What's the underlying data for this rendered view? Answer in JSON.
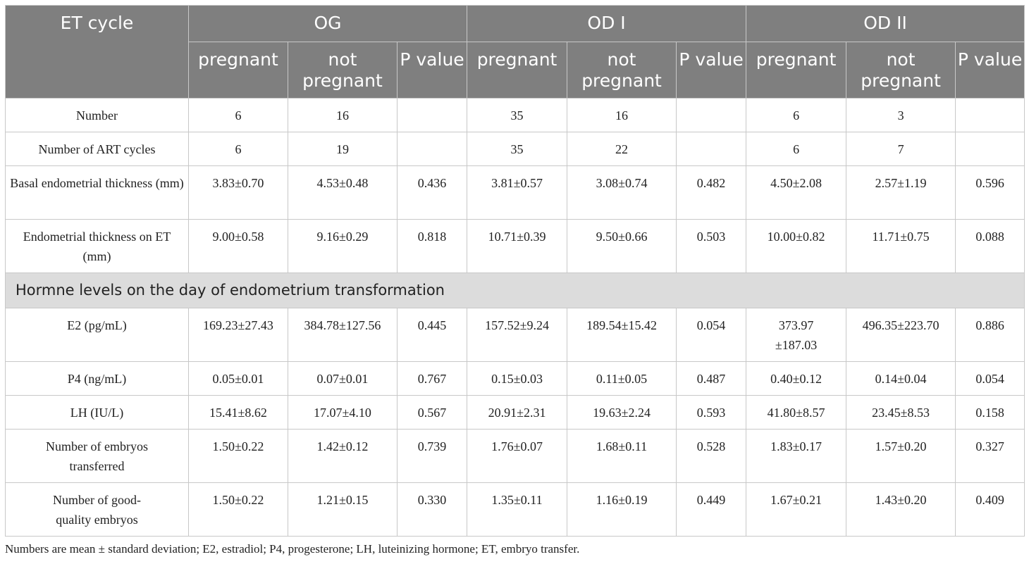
{
  "header": {
    "corner": "ET cycle",
    "groups": [
      "OG",
      "OD I",
      "OD II"
    ],
    "subheaders": {
      "pregnant": "pregnant",
      "not_pregnant": "not pregnant",
      "p_value": "P value"
    }
  },
  "rows_top": [
    {
      "label": "Number",
      "cells": [
        "6",
        "16",
        "",
        "35",
        "16",
        "",
        "6",
        "3",
        ""
      ]
    },
    {
      "label": "Number of ART cycles",
      "cells": [
        "6",
        "19",
        "",
        "35",
        "22",
        "",
        "6",
        "7",
        ""
      ]
    },
    {
      "label": "Basal endometrial thickness (mm)",
      "cells": [
        "3.83±0.70",
        "4.53±0.48",
        "0.436",
        "3.81±0.57",
        "3.08±0.74",
        "0.482",
        "4.50±2.08",
        "2.57±1.19",
        "0.596"
      ]
    },
    {
      "label": "Endometrial thickness on ET (mm)",
      "cells": [
        "9.00±0.58",
        "9.16±0.29",
        "0.818",
        "10.71±0.39",
        "9.50±0.66",
        "0.503",
        "10.00±0.82",
        "11.71±0.75",
        "0.088"
      ]
    }
  ],
  "section_title": "Hormne levels on the day of endometrium transformation",
  "rows_bottom": [
    {
      "label": "E2 (pg/mL)",
      "cells": [
        "169.23±27.43",
        "384.78±127.56",
        "0.445",
        "157.52±9.24",
        "189.54±15.42",
        "0.054",
        "373.97 ±187.03",
        "496.35±223.70",
        "0.886"
      ]
    },
    {
      "label": "P4 (ng/mL)",
      "cells": [
        "0.05±0.01",
        "0.07±0.01",
        "0.767",
        "0.15±0.03",
        "0.11±0.05",
        "0.487",
        "0.40±0.12",
        "0.14±0.04",
        "0.054"
      ]
    },
    {
      "label": "LH (IU/L)",
      "cells": [
        "15.41±8.62",
        "17.07±4.10",
        "0.567",
        "20.91±2.31",
        "19.63±2.24",
        "0.593",
        "41.80±8.57",
        "23.45±8.53",
        "0.158"
      ]
    },
    {
      "label": "Number of embryos transferred",
      "cells": [
        "1.50±0.22",
        "1.42±0.12",
        "0.739",
        "1.76±0.07",
        "1.68±0.11",
        "0.528",
        "1.83±0.17",
        "1.57±0.20",
        "0.327"
      ]
    },
    {
      "label": "Number of good-quality embryos",
      "cells": [
        "1.50±0.22",
        "1.21±0.15",
        "0.330",
        "1.35±0.11",
        "1.16±0.19",
        "0.449",
        "1.67±0.21",
        "1.43±0.20",
        "0.409"
      ]
    }
  ],
  "footnote": "Numbers are mean ± standard deviation; E2, estradiol; P4, progesterone; LH, luteinizing hormone; ET, embryo transfer."
}
